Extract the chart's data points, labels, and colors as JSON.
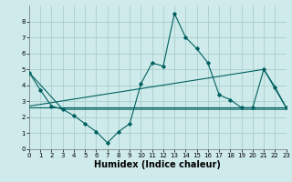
{
  "background_color": "#ceeaea",
  "grid_color": "#aacece",
  "line_color": "#006060",
  "x_min": 0,
  "x_max": 23,
  "y_min": 0,
  "y_max": 9,
  "xlabel": "Humidex (Indice chaleur)",
  "xlabel_fontsize": 7.0,
  "yticks": [
    0,
    1,
    2,
    3,
    4,
    5,
    6,
    7,
    8
  ],
  "xticks": [
    0,
    1,
    2,
    3,
    4,
    5,
    6,
    7,
    8,
    9,
    10,
    11,
    12,
    13,
    14,
    15,
    16,
    17,
    18,
    19,
    20,
    21,
    22,
    23
  ],
  "series1_x": [
    0,
    1,
    2,
    3,
    4,
    5,
    6,
    7,
    8,
    9,
    10,
    11,
    12,
    13,
    14,
    15,
    16,
    17,
    18,
    19,
    20,
    21,
    22,
    23
  ],
  "series1_y": [
    4.8,
    3.7,
    2.7,
    2.5,
    2.1,
    1.6,
    1.1,
    0.4,
    1.1,
    1.6,
    4.1,
    5.4,
    5.2,
    8.5,
    7.0,
    6.3,
    5.4,
    3.4,
    3.1,
    2.6,
    2.6,
    5.0,
    3.9,
    2.6
  ],
  "series2_x": [
    0,
    21,
    23
  ],
  "series2_y": [
    2.7,
    5.0,
    2.6
  ],
  "series3_x": [
    0,
    23
  ],
  "series3_y": [
    2.6,
    2.6
  ],
  "series4_x": [
    0,
    3,
    23
  ],
  "series4_y": [
    4.8,
    2.5,
    2.5
  ]
}
